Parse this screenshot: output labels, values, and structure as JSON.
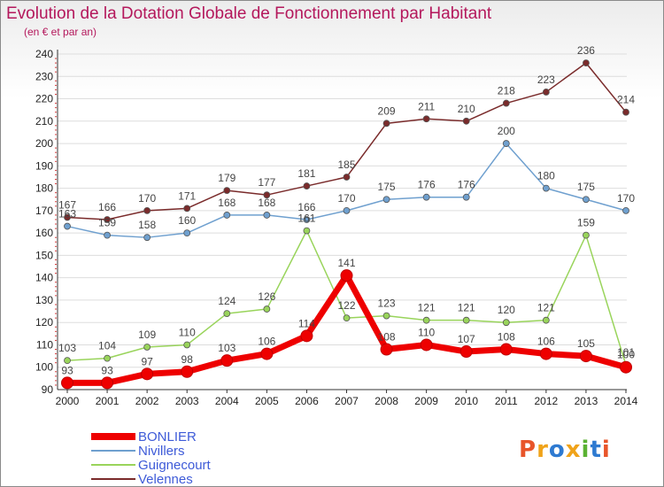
{
  "header": {
    "title": "Evolution de la Dotation Globale de Fonctionnement par Habitant",
    "subtitle": "(en € et par an)"
  },
  "logo": {
    "text": "Proxiti",
    "colors": [
      "#e8552a",
      "#f0a31a",
      "#2e7ad1",
      "#f0a31a",
      "#5bb233",
      "#2e7ad1",
      "#e8552a"
    ]
  },
  "chart_data": {
    "type": "line",
    "x": [
      2000,
      2001,
      2002,
      2003,
      2004,
      2005,
      2006,
      2007,
      2008,
      2009,
      2010,
      2011,
      2012,
      2013,
      2014
    ],
    "ylim": [
      90,
      240
    ],
    "yticks": [
      90,
      100,
      110,
      120,
      130,
      140,
      150,
      160,
      170,
      180,
      190,
      200,
      210,
      220,
      230,
      240
    ],
    "grid": "horizontal",
    "legend_position": "bottom-left",
    "series": [
      {
        "name": "BONLIER",
        "color": "#ee0000",
        "values": [
          93,
          93,
          97,
          98,
          103,
          106,
          114,
          141,
          108,
          110,
          107,
          108,
          106,
          105,
          100
        ]
      },
      {
        "name": "Nivillers",
        "color": "#6fa0cf",
        "values": [
          163,
          159,
          158,
          160,
          168,
          168,
          166,
          170,
          175,
          176,
          176,
          200,
          180,
          175,
          170
        ]
      },
      {
        "name": "Guignecourt",
        "color": "#99d45b",
        "values": [
          103,
          104,
          109,
          110,
          124,
          126,
          161,
          122,
          123,
          121,
          121,
          120,
          121,
          159,
          101
        ]
      },
      {
        "name": "Velennes",
        "color": "#7a2b2b",
        "values": [
          167,
          166,
          170,
          171,
          179,
          177,
          181,
          185,
          209,
          211,
          210,
          218,
          223,
          236,
          214
        ]
      }
    ],
    "data_labels": [
      "93",
      "93",
      "97",
      "98",
      "103",
      "106",
      "114",
      "141",
      "108",
      "110",
      "107",
      "108",
      "106",
      "105",
      "100",
      "163",
      "159",
      "158",
      "160",
      "168",
      "168",
      "166",
      "170",
      "175",
      "176",
      "176",
      "200",
      "180",
      "175",
      "170",
      "103",
      "104",
      "109",
      "110",
      "124",
      "126",
      "161",
      "122",
      "123",
      "121",
      "121",
      "120",
      "121",
      "159",
      "101",
      "167",
      "166",
      "170",
      "171",
      "179",
      "177",
      "181",
      "185",
      "209",
      "211",
      "210",
      "218",
      "223",
      "236",
      "214"
    ]
  }
}
